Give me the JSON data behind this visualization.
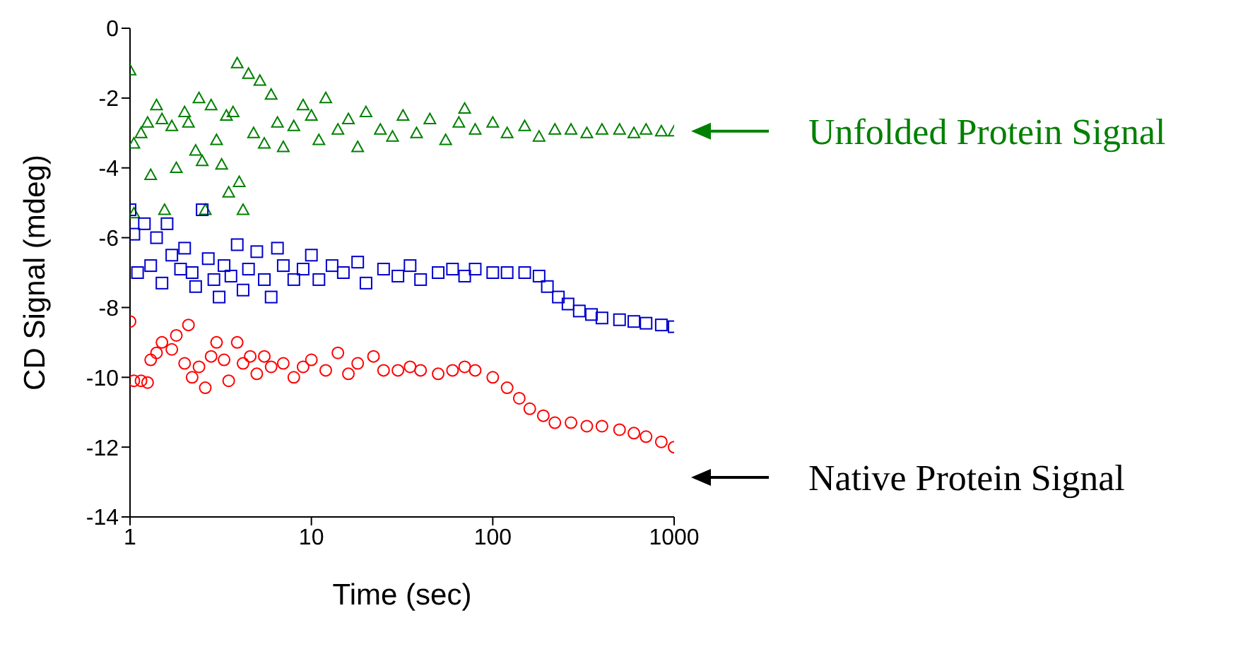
{
  "chart_data": {
    "type": "scatter",
    "xlabel": "Time (sec)",
    "ylabel": "CD Signal (mdeg)",
    "log": "x",
    "xlim": [
      1,
      1000
    ],
    "xticks": [
      1,
      10,
      100,
      1000
    ],
    "ylim": [
      -14,
      0
    ],
    "yticks": [
      -14,
      -12,
      -10,
      -8,
      -6,
      -4,
      -2,
      0
    ],
    "grid": false,
    "legend": false,
    "annotations": [
      "Unfolded Protein Signal",
      "Native Protein Signal"
    ],
    "series": [
      {
        "color": "#008000",
        "marker": "triangle",
        "x": [
          1.0,
          1.05,
          1.05,
          1.15,
          1.25,
          1.3,
          1.4,
          1.5,
          1.55,
          1.7,
          1.8,
          2.0,
          2.1,
          2.3,
          2.4,
          2.5,
          2.6,
          2.8,
          3.0,
          3.2,
          3.4,
          3.5,
          3.7,
          3.9,
          4.0,
          4.2,
          4.5,
          4.8,
          5.2,
          5.5,
          6.0,
          6.5,
          7,
          8,
          9,
          10,
          11,
          12,
          14,
          16,
          18,
          20,
          24,
          28,
          32,
          38,
          45,
          55,
          65,
          70,
          80,
          100,
          120,
          150,
          180,
          220,
          270,
          330,
          400,
          500,
          600,
          700,
          850,
          1000
        ],
        "values": [
          -1.2,
          -3.3,
          -5.3,
          -3.0,
          -2.7,
          -4.2,
          -2.2,
          -2.6,
          -5.2,
          -2.8,
          -4.0,
          -2.4,
          -2.7,
          -3.5,
          -2.0,
          -3.8,
          -5.2,
          -2.2,
          -3.2,
          -3.9,
          -2.5,
          -4.7,
          -2.4,
          -1.0,
          -4.4,
          -5.2,
          -1.3,
          -3.0,
          -1.5,
          -3.3,
          -1.9,
          -2.7,
          -3.4,
          -2.8,
          -2.2,
          -2.5,
          -3.2,
          -2.0,
          -2.9,
          -2.6,
          -3.4,
          -2.4,
          -2.9,
          -3.1,
          -2.5,
          -3.0,
          -2.6,
          -3.2,
          -2.7,
          -2.3,
          -2.9,
          -2.7,
          -3.0,
          -2.8,
          -3.1,
          -2.9,
          -2.9,
          -3.0,
          -2.9,
          -2.9,
          -3.0,
          -2.9,
          -2.95,
          -2.95
        ]
      },
      {
        "color": "#0000cc",
        "marker": "square",
        "x": [
          1.0,
          1.05,
          1.1,
          1.2,
          1.3,
          1.4,
          1.5,
          1.6,
          1.7,
          1.9,
          2.0,
          2.2,
          2.3,
          2.5,
          2.7,
          2.9,
          3.1,
          3.3,
          3.6,
          3.9,
          4.2,
          4.5,
          5,
          5.5,
          6,
          6.5,
          7,
          8,
          9,
          10,
          11,
          13,
          15,
          18,
          20,
          25,
          30,
          35,
          40,
          50,
          60,
          70,
          80,
          100,
          120,
          150,
          180,
          200,
          230,
          260,
          300,
          350,
          400,
          500,
          600,
          700,
          850,
          1000
        ],
        "values": [
          -5.2,
          -5.9,
          -7.0,
          -5.6,
          -6.8,
          -6.0,
          -7.3,
          -5.6,
          -6.5,
          -6.9,
          -6.3,
          -7.0,
          -7.4,
          -5.2,
          -6.6,
          -7.2,
          -7.7,
          -6.8,
          -7.1,
          -6.2,
          -7.5,
          -6.9,
          -6.4,
          -7.2,
          -7.7,
          -6.3,
          -6.8,
          -7.2,
          -6.9,
          -6.5,
          -7.2,
          -6.8,
          -7.0,
          -6.7,
          -7.3,
          -6.9,
          -7.1,
          -6.8,
          -7.2,
          -7.0,
          -6.9,
          -7.1,
          -6.9,
          -7.0,
          -7.0,
          -7.0,
          -7.1,
          -7.4,
          -7.7,
          -7.9,
          -8.1,
          -8.2,
          -8.3,
          -8.35,
          -8.4,
          -8.45,
          -8.5,
          -8.55
        ]
      },
      {
        "color": "#ff0000",
        "marker": "circle",
        "x": [
          1.0,
          1.05,
          1.15,
          1.25,
          1.3,
          1.4,
          1.5,
          1.7,
          1.8,
          2.0,
          2.1,
          2.2,
          2.4,
          2.6,
          2.8,
          3.0,
          3.3,
          3.5,
          3.9,
          4.2,
          4.6,
          5,
          5.5,
          6,
          7,
          8,
          9,
          10,
          12,
          14,
          16,
          18,
          22,
          25,
          30,
          35,
          40,
          50,
          60,
          70,
          80,
          100,
          120,
          140,
          160,
          190,
          220,
          270,
          330,
          400,
          500,
          600,
          700,
          850,
          1000
        ],
        "values": [
          -8.4,
          -10.1,
          -10.1,
          -10.15,
          -9.5,
          -9.3,
          -9.0,
          -9.2,
          -8.8,
          -9.6,
          -8.5,
          -10.0,
          -9.7,
          -10.3,
          -9.4,
          -9.0,
          -9.5,
          -10.1,
          -9.0,
          -9.6,
          -9.4,
          -9.9,
          -9.4,
          -9.7,
          -9.6,
          -10.0,
          -9.7,
          -9.5,
          -9.8,
          -9.3,
          -9.9,
          -9.6,
          -9.4,
          -9.8,
          -9.8,
          -9.7,
          -9.8,
          -9.9,
          -9.8,
          -9.7,
          -9.8,
          -10.0,
          -10.3,
          -10.6,
          -10.9,
          -11.1,
          -11.3,
          -11.3,
          -11.4,
          -11.4,
          -11.5,
          -11.6,
          -11.7,
          -11.85,
          -12.0
        ]
      }
    ]
  }
}
